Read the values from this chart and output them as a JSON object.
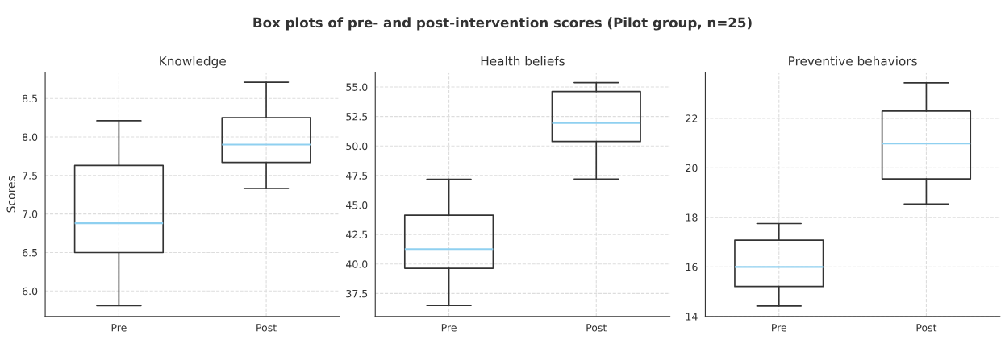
{
  "chart_data": [
    {
      "type": "box",
      "title": "Knowledge",
      "ylabel": "Scores",
      "annotations": [
        "Box plots of pre- and post-intervention scores (Pilot group, n=25)"
      ],
      "categories": [
        "Pre",
        "Post"
      ],
      "ylim": [
        5.67,
        8.84
      ],
      "yticks": [
        {
          "value": 6,
          "label": "6.0"
        },
        6.5,
        {
          "value": 7,
          "label": "7.0"
        },
        7.5,
        {
          "value": 8,
          "label": "8.0"
        },
        8.5
      ],
      "grid": true,
      "series": [
        {
          "color": "#333333",
          "boxes": [
            {
              "low": 5.81,
              "q1": 6.5,
              "median": 6.88,
              "q3": 7.63,
              "high": 8.21
            },
            {
              "low": 7.33,
              "q1": 7.67,
              "median": 7.9,
              "q3": 8.25,
              "high": 8.71
            }
          ]
        }
      ]
    },
    {
      "type": "box",
      "title": "Health beliefs",
      "categories": [
        "Pre",
        "Post"
      ],
      "ylim": [
        35.56,
        56.25
      ],
      "yticks": [
        37.5,
        {
          "value": 40,
          "label": "40.0"
        },
        42.5,
        {
          "value": 45,
          "label": "45.0"
        },
        47.5,
        {
          "value": 50,
          "label": "50.0"
        },
        52.5,
        {
          "value": 55,
          "label": "55.0"
        }
      ],
      "grid": true,
      "series": [
        {
          "color": "#333333",
          "boxes": [
            {
              "low": 36.5,
              "q1": 39.64,
              "median": 41.27,
              "q3": 44.14,
              "high": 47.18
            },
            {
              "low": 47.2,
              "q1": 50.38,
              "median": 51.95,
              "q3": 54.61,
              "high": 55.37
            }
          ]
        }
      ]
    },
    {
      "type": "box",
      "title": "Preventive behaviors",
      "categories": [
        "Pre",
        "Post"
      ],
      "ylim": [
        14,
        23.86
      ],
      "yticks": [
        14,
        16,
        18,
        20,
        22
      ],
      "grid": true,
      "series": [
        {
          "color": "#333333",
          "boxes": [
            {
              "low": 14.42,
              "q1": 15.21,
              "median": 16.0,
              "q3": 17.08,
              "high": 17.75
            },
            {
              "low": 18.54,
              "q1": 19.55,
              "median": 20.98,
              "q3": 22.29,
              "high": 23.43
            }
          ]
        }
      ]
    }
  ]
}
